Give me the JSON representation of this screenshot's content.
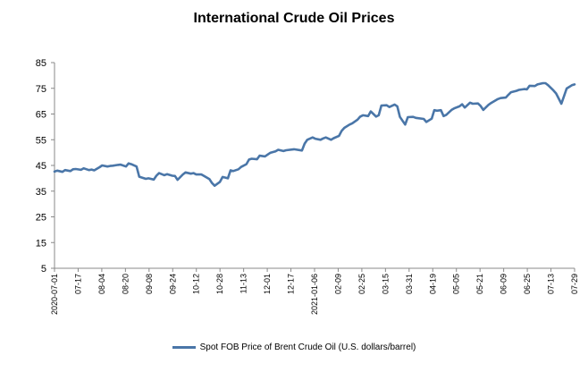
{
  "chart_data": {
    "type": "line",
    "title": "International Crude Oil Prices",
    "xlabel": "",
    "ylabel": "",
    "ylim": [
      5,
      85
    ],
    "yticks": [
      5,
      15,
      25,
      35,
      45,
      55,
      65,
      75,
      85
    ],
    "x_tick_labels": [
      "2020-07-01",
      "07-17",
      "08-04",
      "08-20",
      "09-08",
      "09-24",
      "10-12",
      "10-28",
      "11-13",
      "12-01",
      "12-17",
      "2021-01-06",
      "02-09",
      "02-25",
      "03-15",
      "03-31",
      "04-19",
      "05-05",
      "05-21",
      "06-09",
      "06-25",
      "07-13",
      "07-29"
    ],
    "grid": false,
    "legend_position": "bottom",
    "series": [
      {
        "name": "Spot FOB Price of Brent Crude Oil (U.S. dollars/barrel)",
        "color": "#4a76a8",
        "x": [
          "2020-07-01",
          "2020-07-03",
          "2020-07-07",
          "2020-07-09",
          "2020-07-13",
          "2020-07-15",
          "2020-07-17",
          "2020-07-21",
          "2020-07-23",
          "2020-07-27",
          "2020-07-29",
          "2020-07-31",
          "2020-08-04",
          "2020-08-06",
          "2020-08-10",
          "2020-08-12",
          "2020-08-14",
          "2020-08-18",
          "2020-08-20",
          "2020-08-24",
          "2020-08-26",
          "2020-08-28",
          "2020-09-01",
          "2020-09-03",
          "2020-09-08",
          "2020-09-10",
          "2020-09-14",
          "2020-09-16",
          "2020-09-18",
          "2020-09-22",
          "2020-09-24",
          "2020-09-28",
          "2020-09-30",
          "2020-10-02",
          "2020-10-06",
          "2020-10-08",
          "2020-10-12",
          "2020-10-14",
          "2020-10-16",
          "2020-10-20",
          "2020-10-22",
          "2020-10-26",
          "2020-10-28",
          "2020-10-30",
          "2020-11-03",
          "2020-11-05",
          "2020-11-09",
          "2020-11-11",
          "2020-11-13",
          "2020-11-17",
          "2020-11-19",
          "2020-11-23",
          "2020-11-25",
          "2020-11-27",
          "2020-12-01",
          "2020-12-03",
          "2020-12-07",
          "2020-12-09",
          "2020-12-11",
          "2020-12-15",
          "2020-12-17",
          "2020-12-21",
          "2020-12-23",
          "2020-12-29",
          "2021-01-04",
          "2021-01-06",
          "2021-01-08",
          "2021-01-12",
          "2021-01-14",
          "2021-01-18",
          "2021-01-20",
          "2021-01-22",
          "2021-01-26",
          "2021-01-28",
          "2021-02-01",
          "2021-02-03",
          "2021-02-05",
          "2021-02-09",
          "2021-02-11",
          "2021-02-15",
          "2021-02-17",
          "2021-02-19",
          "2021-02-23",
          "2021-02-25",
          "2021-03-01",
          "2021-03-03",
          "2021-03-05",
          "2021-03-09",
          "2021-03-11",
          "2021-03-15",
          "2021-03-17",
          "2021-03-19",
          "2021-03-23",
          "2021-03-25",
          "2021-03-29",
          "2021-03-31",
          "2021-04-06",
          "2021-04-08",
          "2021-04-12",
          "2021-04-14",
          "2021-04-16",
          "2021-04-19",
          "2021-04-21",
          "2021-04-23",
          "2021-04-27",
          "2021-04-29",
          "2021-05-03",
          "2021-05-05",
          "2021-05-07",
          "2021-05-11",
          "2021-05-13",
          "2021-05-17",
          "2021-05-19",
          "2021-05-21",
          "2021-05-25",
          "2021-05-27",
          "2021-06-01",
          "2021-06-03",
          "2021-06-07",
          "2021-06-09",
          "2021-06-11",
          "2021-06-15",
          "2021-06-17",
          "2021-06-21",
          "2021-06-23",
          "2021-06-25",
          "2021-06-29",
          "2021-07-01",
          "2021-07-05",
          "2021-07-07",
          "2021-07-09",
          "2021-07-13",
          "2021-07-15",
          "2021-07-19",
          "2021-07-21",
          "2021-07-23",
          "2021-07-27",
          "2021-07-29"
        ],
        "values": [
          42.6,
          43.0,
          42.5,
          43.2,
          42.8,
          43.5,
          43.6,
          43.3,
          43.9,
          43.2,
          43.4,
          43.1,
          44.3,
          45.0,
          44.6,
          44.8,
          44.9,
          45.2,
          45.3,
          44.6,
          45.8,
          45.5,
          44.6,
          40.6,
          39.8,
          40.0,
          39.5,
          41.0,
          42.0,
          41.2,
          41.6,
          41.0,
          40.9,
          39.4,
          41.5,
          42.3,
          41.8,
          42.0,
          41.5,
          41.5,
          40.9,
          39.7,
          38.2,
          37.1,
          38.6,
          40.5,
          40.0,
          43.1,
          42.8,
          43.5,
          44.4,
          45.5,
          47.3,
          47.6,
          47.4,
          48.8,
          48.5,
          49.2,
          49.9,
          50.5,
          51.1,
          50.6,
          50.9,
          51.3,
          50.8,
          53.5,
          55.0,
          55.9,
          55.4,
          55.0,
          55.5,
          55.9,
          55.0,
          55.6,
          56.5,
          58.5,
          59.6,
          60.9,
          61.4,
          62.8,
          64.0,
          64.5,
          64.2,
          66.0,
          64.0,
          64.5,
          68.3,
          68.4,
          67.7,
          68.7,
          68.0,
          63.9,
          60.9,
          63.8,
          63.9,
          63.5,
          63.1,
          61.9,
          63.2,
          66.5,
          66.3,
          66.5,
          64.2,
          64.7,
          66.6,
          67.2,
          68.0,
          68.8,
          67.5,
          69.4,
          69.0,
          69.1,
          68.1,
          66.6,
          68.6,
          69.3,
          70.8,
          71.2,
          71.4,
          72.5,
          73.5,
          74.0,
          74.4,
          74.7,
          74.6,
          76.0,
          75.9,
          76.5,
          77.0,
          77.0,
          76.2,
          74.2,
          73.0,
          69.0,
          72.0,
          74.9,
          76.2,
          76.5
        ]
      }
    ]
  }
}
